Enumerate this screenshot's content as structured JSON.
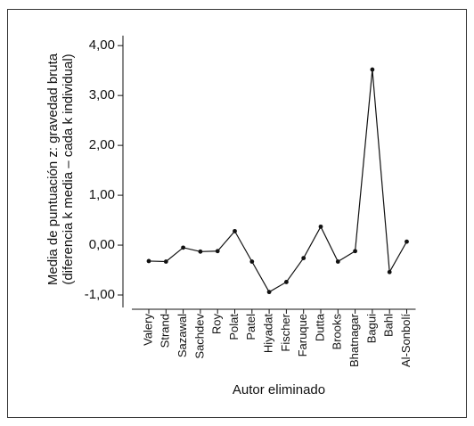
{
  "chart_data": {
    "type": "line",
    "y_label": [
      "Media de puntuación z: gravedad bruta",
      "(diferencia k media – cada k individual)"
    ],
    "x_label": "Autor eliminado",
    "categories": [
      "Valery",
      "Strand",
      "Sazawal",
      "Sachdev",
      "Roy",
      "Polat",
      "Patel",
      "Hiyadat",
      "Fischer",
      "Faruque",
      "Dutta",
      "Brooks",
      "Bhatnagar",
      "Bagui",
      "Bahl",
      "Al-Sonbolí"
    ],
    "values": [
      -0.32,
      -0.33,
      -0.05,
      -0.13,
      -0.12,
      0.28,
      -0.33,
      -0.94,
      -0.74,
      -0.26,
      0.37,
      -0.33,
      -0.12,
      3.52,
      -0.54,
      0.07
    ],
    "color": "#111111",
    "ylim": [
      -1.25,
      4.2
    ],
    "yticks": [
      {
        "value": -1,
        "label": "-1,00"
      },
      {
        "value": 0,
        "label": "0,00"
      },
      {
        "value": 1,
        "label": "1,00"
      },
      {
        "value": 2,
        "label": "2,00"
      },
      {
        "value": 3,
        "label": "3,00"
      },
      {
        "value": 4,
        "label": "4,00"
      }
    ]
  }
}
